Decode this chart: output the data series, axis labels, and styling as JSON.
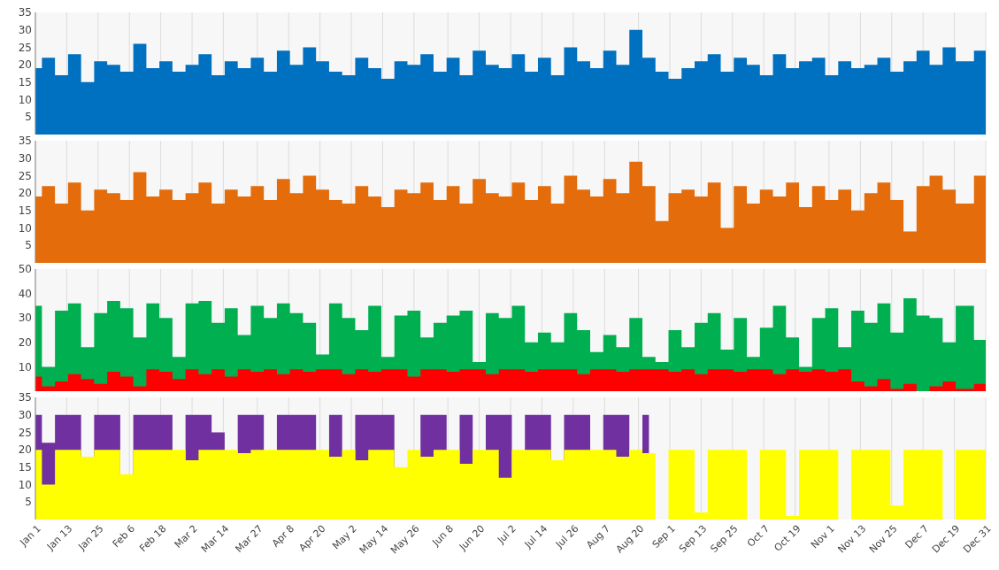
{
  "chart_data": [
    {
      "type": "area",
      "x": [
        "--01-01",
        "--01-06",
        "--01-11",
        "--01-16",
        "--01-21",
        "--01-26",
        "--01-31",
        "--02-05",
        "--02-10",
        "--02-15",
        "--02-20",
        "--02-25",
        "--03-02",
        "--03-07",
        "--03-12",
        "--03-17",
        "--03-22",
        "--03-27",
        "--04-01",
        "--04-06",
        "--04-11",
        "--04-16",
        "--04-21",
        "--04-26",
        "--05-01",
        "--05-06",
        "--05-11",
        "--05-16",
        "--05-21",
        "--05-26",
        "--05-31",
        "--06-05",
        "--06-10",
        "--06-15",
        "--06-20",
        "--06-25",
        "--06-30",
        "--07-05",
        "--07-10",
        "--07-15",
        "--07-20",
        "--07-25",
        "--07-30",
        "--08-04",
        "--08-09",
        "--08-14",
        "--08-19",
        "--08-24",
        "--08-29",
        "--09-03",
        "--09-08",
        "--09-13",
        "--09-18",
        "--09-23",
        "--09-28",
        "--10-03",
        "--10-08",
        "--10-13",
        "--10-18",
        "--10-23",
        "--10-28",
        "--11-02",
        "--11-07",
        "--11-12",
        "--11-17",
        "--11-22",
        "--11-27",
        "--12-02",
        "--12-07",
        "--12-12",
        "--12-17",
        "--12-22",
        "--12-31"
      ],
      "series": [
        {
          "color": "#0070c0",
          "values": [
            19,
            22,
            17,
            23,
            15,
            21,
            20,
            18,
            26,
            19,
            21,
            18,
            20,
            23,
            17,
            21,
            19,
            22,
            18,
            24,
            20,
            25,
            21,
            18,
            17,
            22,
            19,
            16,
            21,
            20,
            23,
            18,
            22,
            17,
            24,
            20,
            19,
            23,
            18,
            22,
            17,
            25,
            21,
            19,
            24,
            20,
            30,
            22,
            18,
            16,
            19,
            21,
            23,
            18,
            22,
            20,
            17,
            23,
            19,
            21,
            22,
            17,
            21,
            19,
            20,
            22,
            18,
            21,
            24,
            20,
            25,
            21,
            24
          ]
        }
      ],
      "xlim": [
        "--01-01",
        "--12-31"
      ],
      "ylim": [
        0,
        35
      ],
      "yticks": [
        5,
        10,
        15,
        20,
        25,
        30,
        35
      ],
      "xticks": [
        {
          "value": "--01-01",
          "label": null
        },
        {
          "value": "--01-13",
          "label": null
        },
        {
          "value": "--01-25",
          "label": null
        },
        {
          "value": "--02-06",
          "label": null
        },
        {
          "value": "--02-18",
          "label": null
        },
        {
          "value": "--03-02",
          "label": null
        },
        {
          "value": "--03-14",
          "label": null
        },
        {
          "value": "--03-27",
          "label": null
        },
        {
          "value": "--04-08",
          "label": null
        },
        {
          "value": "--04-20",
          "label": null
        },
        {
          "value": "--05-02",
          "label": null
        },
        {
          "value": "--05-14",
          "label": null
        },
        {
          "value": "--05-26",
          "label": null
        },
        {
          "value": "--06-08",
          "label": null
        },
        {
          "value": "--06-20",
          "label": null
        },
        {
          "value": "--07-02",
          "label": null
        },
        {
          "value": "--07-14",
          "label": null
        },
        {
          "value": "--07-26",
          "label": null
        },
        {
          "value": "--08-07",
          "label": null
        },
        {
          "value": "--08-20",
          "label": null
        },
        {
          "value": "--09-01",
          "label": null
        },
        {
          "value": "--09-13",
          "label": null
        },
        {
          "value": "--09-25",
          "label": null
        },
        {
          "value": "--10-07",
          "label": null
        },
        {
          "value": "--10-19",
          "label": null
        },
        {
          "value": "--11-01",
          "label": null
        },
        {
          "value": "--11-13",
          "label": null
        },
        {
          "value": "--11-25",
          "label": null
        },
        {
          "value": "--12-07",
          "label": null
        },
        {
          "value": "--12-19",
          "label": null
        },
        {
          "value": "--12-31",
          "label": null
        }
      ],
      "grid": "x",
      "tick_labels": "y"
    },
    {
      "type": "area",
      "x": [
        "--01-01",
        "--01-06",
        "--01-11",
        "--01-16",
        "--01-21",
        "--01-26",
        "--01-31",
        "--02-05",
        "--02-10",
        "--02-15",
        "--02-20",
        "--02-25",
        "--03-02",
        "--03-07",
        "--03-12",
        "--03-17",
        "--03-22",
        "--03-27",
        "--04-01",
        "--04-06",
        "--04-11",
        "--04-16",
        "--04-21",
        "--04-26",
        "--05-01",
        "--05-06",
        "--05-11",
        "--05-16",
        "--05-21",
        "--05-26",
        "--05-31",
        "--06-05",
        "--06-10",
        "--06-15",
        "--06-20",
        "--06-25",
        "--06-30",
        "--07-05",
        "--07-10",
        "--07-15",
        "--07-20",
        "--07-25",
        "--07-30",
        "--08-04",
        "--08-09",
        "--08-14",
        "--08-19",
        "--08-24",
        "--08-29",
        "--09-03",
        "--09-08",
        "--09-13",
        "--09-18",
        "--09-23",
        "--09-28",
        "--10-03",
        "--10-08",
        "--10-13",
        "--10-18",
        "--10-23",
        "--10-28",
        "--11-02",
        "--11-07",
        "--11-12",
        "--11-17",
        "--11-22",
        "--11-27",
        "--12-02",
        "--12-07",
        "--12-12",
        "--12-17",
        "--12-22",
        "--12-31"
      ],
      "series": [
        {
          "color": "#e46c0a",
          "values": [
            19,
            22,
            17,
            23,
            15,
            21,
            20,
            18,
            26,
            19,
            21,
            18,
            20,
            23,
            17,
            21,
            19,
            22,
            18,
            24,
            20,
            25,
            21,
            18,
            17,
            22,
            19,
            16,
            21,
            20,
            23,
            18,
            22,
            17,
            24,
            20,
            19,
            23,
            18,
            22,
            17,
            25,
            21,
            19,
            24,
            20,
            29,
            22,
            12,
            20,
            21,
            19,
            23,
            10,
            22,
            17,
            21,
            19,
            23,
            16,
            22,
            18,
            21,
            15,
            20,
            23,
            18,
            9,
            22,
            25,
            21,
            17,
            25
          ]
        }
      ],
      "xlim": [
        "--01-01",
        "--12-31"
      ],
      "ylim": [
        0,
        35
      ],
      "yticks": [
        5,
        10,
        15,
        20,
        25,
        30,
        35
      ],
      "xticks": [
        {
          "value": "--01-01",
          "label": null
        },
        {
          "value": "--01-13",
          "label": null
        },
        {
          "value": "--01-25",
          "label": null
        },
        {
          "value": "--02-06",
          "label": null
        },
        {
          "value": "--02-18",
          "label": null
        },
        {
          "value": "--03-02",
          "label": null
        },
        {
          "value": "--03-14",
          "label": null
        },
        {
          "value": "--03-27",
          "label": null
        },
        {
          "value": "--04-08",
          "label": null
        },
        {
          "value": "--04-20",
          "label": null
        },
        {
          "value": "--05-02",
          "label": null
        },
        {
          "value": "--05-14",
          "label": null
        },
        {
          "value": "--05-26",
          "label": null
        },
        {
          "value": "--06-08",
          "label": null
        },
        {
          "value": "--06-20",
          "label": null
        },
        {
          "value": "--07-02",
          "label": null
        },
        {
          "value": "--07-14",
          "label": null
        },
        {
          "value": "--07-26",
          "label": null
        },
        {
          "value": "--08-07",
          "label": null
        },
        {
          "value": "--08-20",
          "label": null
        },
        {
          "value": "--09-01",
          "label": null
        },
        {
          "value": "--09-13",
          "label": null
        },
        {
          "value": "--09-25",
          "label": null
        },
        {
          "value": "--10-07",
          "label": null
        },
        {
          "value": "--10-19",
          "label": null
        },
        {
          "value": "--11-01",
          "label": null
        },
        {
          "value": "--11-13",
          "label": null
        },
        {
          "value": "--11-25",
          "label": null
        },
        {
          "value": "--12-07",
          "label": null
        },
        {
          "value": "--12-19",
          "label": null
        },
        {
          "value": "--12-31",
          "label": null
        }
      ],
      "grid": "x",
      "tick_labels": "y"
    },
    {
      "type": "area",
      "x": [
        "--01-01",
        "--01-06",
        "--01-11",
        "--01-16",
        "--01-21",
        "--01-26",
        "--01-31",
        "--02-05",
        "--02-10",
        "--02-15",
        "--02-20",
        "--02-25",
        "--03-02",
        "--03-07",
        "--03-12",
        "--03-17",
        "--03-22",
        "--03-27",
        "--04-01",
        "--04-06",
        "--04-11",
        "--04-16",
        "--04-21",
        "--04-26",
        "--05-01",
        "--05-06",
        "--05-11",
        "--05-16",
        "--05-21",
        "--05-26",
        "--05-31",
        "--06-05",
        "--06-10",
        "--06-15",
        "--06-20",
        "--06-25",
        "--06-30",
        "--07-05",
        "--07-10",
        "--07-15",
        "--07-20",
        "--07-25",
        "--07-30",
        "--08-04",
        "--08-09",
        "--08-14",
        "--08-19",
        "--08-24",
        "--08-29",
        "--09-03",
        "--09-08",
        "--09-13",
        "--09-18",
        "--09-23",
        "--09-28",
        "--10-03",
        "--10-08",
        "--10-13",
        "--10-18",
        "--10-23",
        "--10-28",
        "--11-02",
        "--11-07",
        "--11-12",
        "--11-17",
        "--11-22",
        "--11-27",
        "--12-02",
        "--12-07",
        "--12-12",
        "--12-17",
        "--12-22",
        "--12-31"
      ],
      "series": [
        {
          "color": "#00b050",
          "values": [
            35,
            10,
            33,
            36,
            18,
            32,
            37,
            34,
            22,
            36,
            30,
            14,
            36,
            37,
            28,
            34,
            23,
            35,
            30,
            36,
            32,
            28,
            15,
            36,
            30,
            25,
            35,
            14,
            31,
            33,
            22,
            28,
            31,
            33,
            12,
            32,
            30,
            35,
            20,
            24,
            20,
            32,
            25,
            16,
            23,
            18,
            30,
            14,
            12,
            25,
            18,
            28,
            32,
            17,
            30,
            14,
            26,
            35,
            22,
            10,
            30,
            34,
            18,
            33,
            28,
            36,
            24,
            38,
            31,
            30,
            20,
            35,
            21
          ]
        },
        {
          "color": "#ff0000",
          "values": [
            6,
            2,
            4,
            7,
            5,
            3,
            8,
            6,
            2,
            9,
            8,
            5,
            9,
            7,
            9,
            6,
            9,
            8,
            9,
            7,
            9,
            8,
            9,
            9,
            7,
            9,
            8,
            9,
            9,
            6,
            9,
            9,
            8,
            9,
            9,
            7,
            9,
            9,
            8,
            9,
            9,
            9,
            7,
            9,
            9,
            8,
            9,
            9,
            9,
            8,
            9,
            7,
            9,
            9,
            8,
            9,
            9,
            7,
            9,
            8,
            9,
            8,
            9,
            4,
            2,
            5,
            1,
            3,
            0,
            2,
            4,
            1,
            3
          ]
        }
      ],
      "xlim": [
        "--01-01",
        "--12-31"
      ],
      "ylim": [
        0,
        50
      ],
      "yticks": [
        10,
        20,
        30,
        40,
        50
      ],
      "xticks": [
        {
          "value": "--01-01",
          "label": null
        },
        {
          "value": "--01-13",
          "label": null
        },
        {
          "value": "--01-25",
          "label": null
        },
        {
          "value": "--02-06",
          "label": null
        },
        {
          "value": "--02-18",
          "label": null
        },
        {
          "value": "--03-02",
          "label": null
        },
        {
          "value": "--03-14",
          "label": null
        },
        {
          "value": "--03-27",
          "label": null
        },
        {
          "value": "--04-08",
          "label": null
        },
        {
          "value": "--04-20",
          "label": null
        },
        {
          "value": "--05-02",
          "label": null
        },
        {
          "value": "--05-14",
          "label": null
        },
        {
          "value": "--05-26",
          "label": null
        },
        {
          "value": "--06-08",
          "label": null
        },
        {
          "value": "--06-20",
          "label": null
        },
        {
          "value": "--07-02",
          "label": null
        },
        {
          "value": "--07-14",
          "label": null
        },
        {
          "value": "--07-26",
          "label": null
        },
        {
          "value": "--08-07",
          "label": null
        },
        {
          "value": "--08-20",
          "label": null
        },
        {
          "value": "--09-01",
          "label": null
        },
        {
          "value": "--09-13",
          "label": null
        },
        {
          "value": "--09-25",
          "label": null
        },
        {
          "value": "--10-07",
          "label": null
        },
        {
          "value": "--10-19",
          "label": null
        },
        {
          "value": "--11-01",
          "label": null
        },
        {
          "value": "--11-13",
          "label": null
        },
        {
          "value": "--11-25",
          "label": null
        },
        {
          "value": "--12-07",
          "label": null
        },
        {
          "value": "--12-19",
          "label": null
        },
        {
          "value": "--12-31",
          "label": null
        }
      ],
      "grid": "x",
      "tick_labels": "y"
    },
    {
      "type": "area",
      "x": [
        "--01-01",
        "--01-06",
        "--01-11",
        "--01-16",
        "--01-21",
        "--01-26",
        "--01-31",
        "--02-05",
        "--02-10",
        "--02-15",
        "--02-20",
        "--02-25",
        "--03-02",
        "--03-07",
        "--03-12",
        "--03-17",
        "--03-22",
        "--03-27",
        "--04-01",
        "--04-06",
        "--04-11",
        "--04-16",
        "--04-21",
        "--04-26",
        "--05-01",
        "--05-06",
        "--05-11",
        "--05-16",
        "--05-21",
        "--05-26",
        "--05-31",
        "--06-05",
        "--06-10",
        "--06-15",
        "--06-20",
        "--06-25",
        "--06-30",
        "--07-05",
        "--07-10",
        "--07-15",
        "--07-20",
        "--07-25",
        "--07-30",
        "--08-04",
        "--08-09",
        "--08-14",
        "--08-19",
        "--08-24",
        "--08-29",
        "--09-03",
        "--09-08",
        "--09-13",
        "--09-18",
        "--09-23",
        "--09-28",
        "--10-03",
        "--10-08",
        "--10-13",
        "--10-18",
        "--10-23",
        "--10-28",
        "--11-02",
        "--11-07",
        "--11-12",
        "--11-17",
        "--11-22",
        "--11-27",
        "--12-02",
        "--12-07",
        "--12-12",
        "--12-17",
        "--12-22",
        "--12-31"
      ],
      "series": [
        {
          "color": "#7030a0",
          "values": [
            30,
            22,
            30,
            30,
            0,
            30,
            30,
            0,
            30,
            30,
            30,
            0,
            30,
            30,
            25,
            0,
            30,
            30,
            0,
            30,
            30,
            30,
            0,
            30,
            0,
            30,
            30,
            30,
            0,
            0,
            30,
            30,
            0,
            30,
            0,
            30,
            30,
            0,
            30,
            30,
            0,
            30,
            30,
            0,
            30,
            30,
            0,
            30,
            null,
            null,
            null,
            null,
            null,
            null,
            null,
            null,
            null,
            null,
            null,
            null,
            null,
            null,
            null,
            null,
            null,
            null,
            null,
            null,
            null,
            null,
            null,
            null,
            null
          ]
        },
        {
          "color": "#ffff00",
          "values": [
            20,
            10,
            20,
            20,
            18,
            20,
            20,
            13,
            20,
            20,
            20,
            20,
            17,
            20,
            20,
            20,
            19,
            20,
            20,
            20,
            20,
            20,
            20,
            18,
            20,
            17,
            20,
            20,
            15,
            20,
            18,
            20,
            20,
            16,
            20,
            20,
            12,
            20,
            20,
            20,
            17,
            20,
            20,
            20,
            20,
            18,
            20,
            19,
            0,
            20,
            20,
            2,
            20,
            20,
            20,
            0,
            20,
            20,
            1,
            20,
            20,
            20,
            0,
            20,
            20,
            20,
            4,
            20,
            20,
            20,
            0,
            20,
            20
          ]
        }
      ],
      "xlim": [
        "--01-01",
        "--12-31"
      ],
      "ylim": [
        0,
        35
      ],
      "yticks": [
        5,
        10,
        15,
        20,
        25,
        30,
        35
      ],
      "xticks": [
        {
          "value": "--01-01",
          "label": "Jan 1"
        },
        {
          "value": "--01-13",
          "label": "Jan 13"
        },
        {
          "value": "--01-25",
          "label": "Jan 25"
        },
        {
          "value": "--02-06",
          "label": "Feb 6"
        },
        {
          "value": "--02-18",
          "label": "Feb 18"
        },
        {
          "value": "--03-02",
          "label": "Mar 2"
        },
        {
          "value": "--03-14",
          "label": "Mar 14"
        },
        {
          "value": "--03-27",
          "label": "Mar 27"
        },
        {
          "value": "--04-08",
          "label": "Apr 8"
        },
        {
          "value": "--04-20",
          "label": "Apr 20"
        },
        {
          "value": "--05-02",
          "label": "May 2"
        },
        {
          "value": "--05-14",
          "label": "May 14"
        },
        {
          "value": "--05-26",
          "label": "May 26"
        },
        {
          "value": "--06-08",
          "label": "Jun 8"
        },
        {
          "value": "--06-20",
          "label": "Jun 20"
        },
        {
          "value": "--07-02",
          "label": "Jul 2"
        },
        {
          "value": "--07-14",
          "label": "Jul 14"
        },
        {
          "value": "--07-26",
          "label": "Jul 26"
        },
        {
          "value": "--08-07",
          "label": "Aug 7"
        },
        {
          "value": "--08-20",
          "label": "Aug 20"
        },
        {
          "value": "--09-01",
          "label": "Sep 1"
        },
        {
          "value": "--09-13",
          "label": "Sep 13"
        },
        {
          "value": "--09-25",
          "label": "Sep 25"
        },
        {
          "value": "--10-07",
          "label": "Oct 7"
        },
        {
          "value": "--10-19",
          "label": "Oct 19"
        },
        {
          "value": "--11-01",
          "label": "Nov 1"
        },
        {
          "value": "--11-13",
          "label": "Nov 13"
        },
        {
          "value": "--11-25",
          "label": "Nov 25"
        },
        {
          "value": "--12-07",
          "label": "Dec 7"
        },
        {
          "value": "--12-19",
          "label": "Dec 19"
        },
        {
          "value": "--12-31",
          "label": "Dec 31"
        }
      ],
      "grid": "x"
    }
  ]
}
